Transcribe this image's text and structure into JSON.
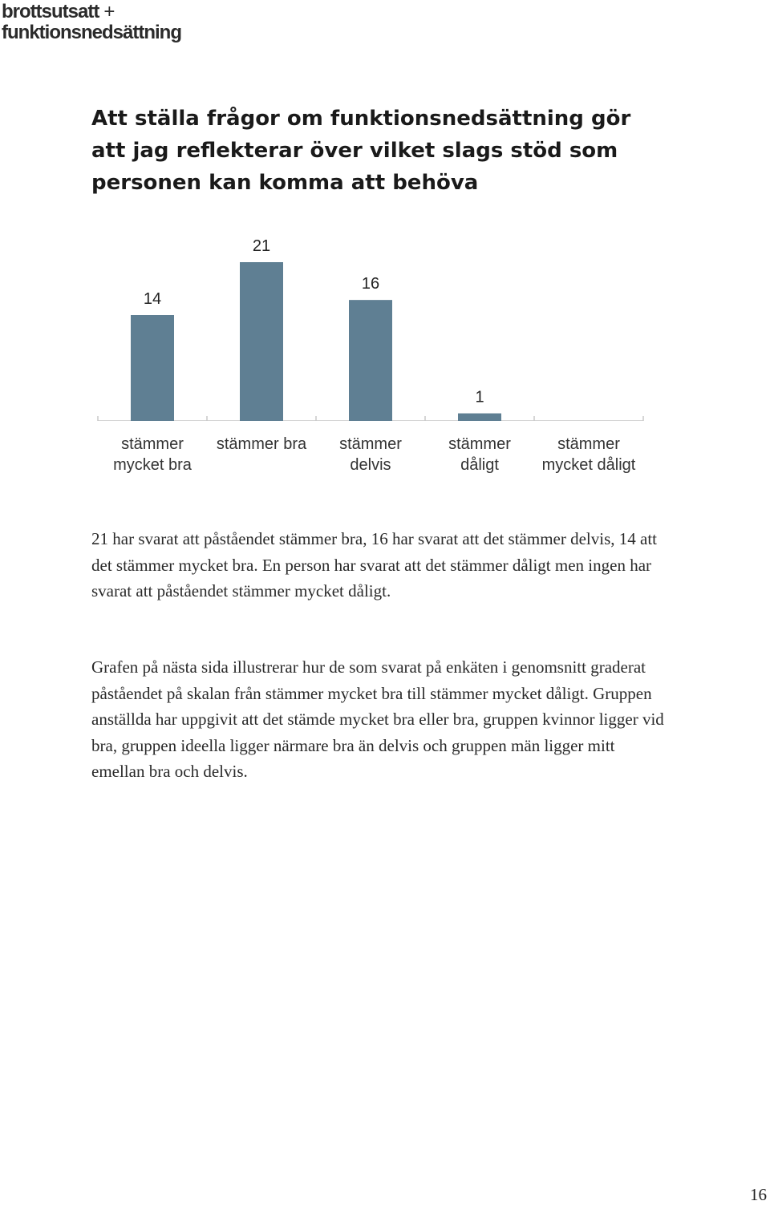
{
  "logo": {
    "line1": "brottsutsatt",
    "plus": "+",
    "line2": "funktionsnedsättning"
  },
  "heading": "Att ställa frågor om funktionsnedsättning gör att jag reflekterar över vilket slags stöd som personen kan komma att behöva",
  "chart_data": {
    "type": "bar",
    "categories": [
      "stämmer mycket bra",
      "stämmer bra",
      "stämmer delvis",
      "stämmer dåligt",
      "stämmer mycket dåligt"
    ],
    "values": [
      14,
      21,
      16,
      1,
      0
    ],
    "value_labels": [
      "14",
      "21",
      "16",
      "1",
      ""
    ],
    "colors": {
      "bar": "#5f7f93"
    },
    "ylim": [
      0,
      21
    ],
    "grid": false,
    "legend": false
  },
  "paragraphs": [
    "21 har svarat att påståendet stämmer bra, 16 har svarat att det stämmer delvis, 14 att det stämmer mycket bra. En person har svarat att det stämmer dåligt men ingen har svarat att påståendet stämmer mycket dåligt.",
    "Grafen på nästa sida illustrerar hur de som svarat på enkäten i genomsnitt graderat påståendet på skalan från stämmer mycket bra till stämmer mycket dåligt. Gruppen anställda har uppgivit att det stämde mycket bra eller bra, gruppen kvinnor ligger vid bra, gruppen ideella ligger närmare bra än delvis och gruppen män ligger mitt emellan bra och delvis."
  ],
  "page_number": "16"
}
